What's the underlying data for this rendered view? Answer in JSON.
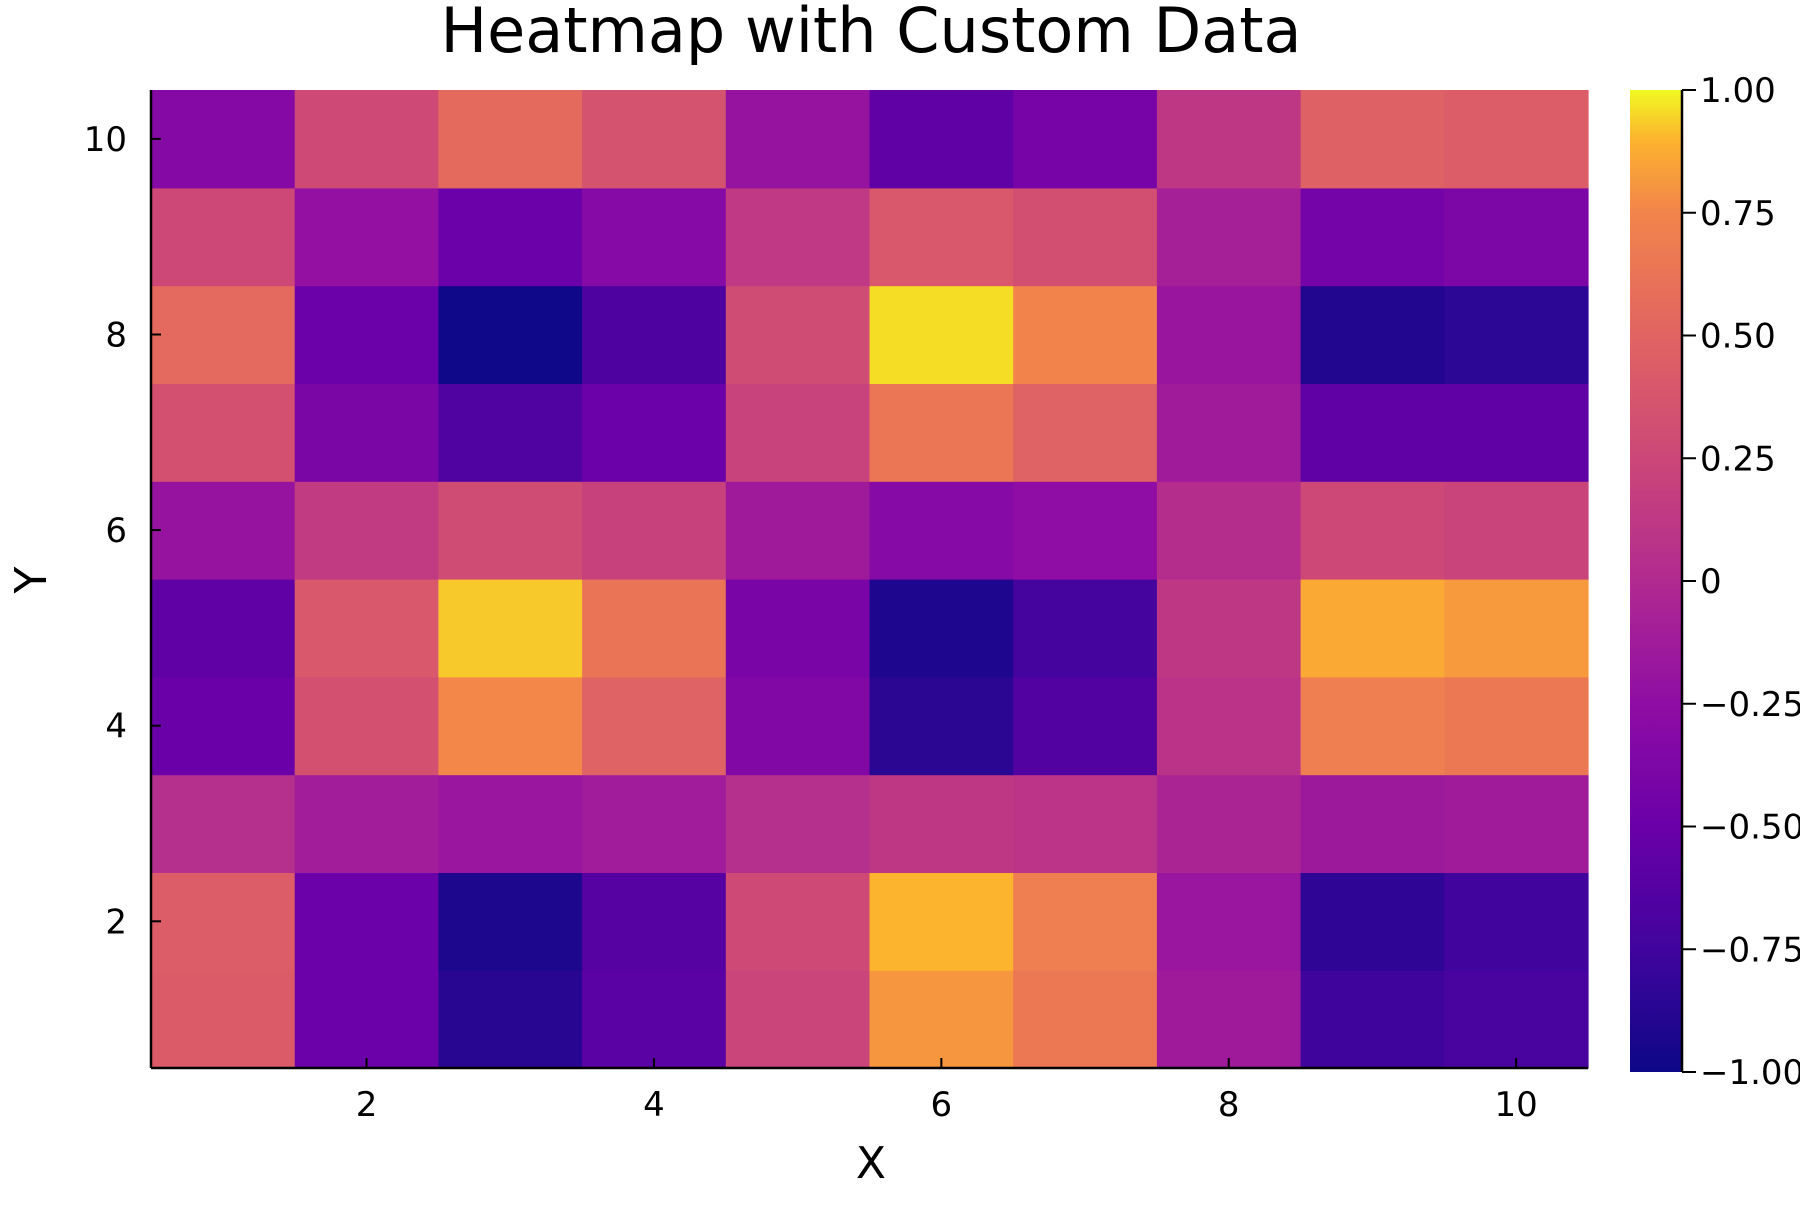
{
  "chart_data": {
    "type": "heatmap",
    "title": "Heatmap with Custom Data",
    "xlabel": "X",
    "ylabel": "Y",
    "x": [
      1,
      2,
      3,
      4,
      5,
      6,
      7,
      8,
      9,
      10
    ],
    "y": [
      1,
      2,
      3,
      4,
      5,
      6,
      7,
      8,
      9,
      10
    ],
    "xlim": [
      0.5,
      10.5
    ],
    "ylim": [
      0.5,
      10.5
    ],
    "x_ticks": [
      2,
      4,
      6,
      8,
      10
    ],
    "y_ticks": [
      2,
      4,
      6,
      8,
      10
    ],
    "x_tick_labels": [
      "2",
      "4",
      "6",
      "8",
      "10"
    ],
    "y_tick_labels": [
      "2",
      "4",
      "6",
      "8",
      "10"
    ],
    "colormap": "plasma",
    "clim": [
      -1.0,
      1.0
    ],
    "colorbar_ticks": [
      1.0,
      0.75,
      0.5,
      0.25,
      0.0,
      -0.25,
      -0.5,
      -0.75,
      -1.0
    ],
    "colorbar_tick_labels": [
      "1.00",
      "0.75",
      "0.50",
      "0.25",
      "0",
      "−0.25",
      "−0.50",
      "−0.75",
      "−1.00"
    ],
    "grid": false,
    "legend": "none",
    "z_rows_by_y": [
      [
        0.43,
        -0.49,
        -0.87,
        -0.6,
        0.23,
        0.81,
        0.66,
        -0.14,
        -0.76,
        -0.7
      ],
      [
        0.44,
        -0.49,
        -0.93,
        -0.62,
        0.27,
        0.9,
        0.7,
        -0.17,
        -0.84,
        -0.75
      ],
      [
        0.04,
        -0.11,
        -0.17,
        -0.12,
        0.04,
        0.11,
        0.09,
        -0.05,
        -0.15,
        -0.13
      ],
      [
        -0.5,
        0.33,
        0.76,
        0.48,
        -0.34,
        -0.86,
        -0.65,
        0.08,
        0.7,
        0.66
      ],
      [
        -0.57,
        0.4,
        0.93,
        0.63,
        -0.4,
        -0.92,
        -0.72,
        0.11,
        0.87,
        0.82
      ],
      [
        -0.2,
        0.15,
        0.29,
        0.2,
        -0.14,
        -0.31,
        -0.25,
        0.03,
        0.26,
        0.22
      ],
      [
        0.33,
        -0.39,
        -0.66,
        -0.49,
        0.21,
        0.64,
        0.48,
        -0.13,
        -0.57,
        -0.57
      ],
      [
        0.54,
        -0.49,
        -0.99,
        -0.67,
        0.29,
        0.96,
        0.75,
        -0.18,
        -0.9,
        -0.85
      ],
      [
        0.26,
        -0.22,
        -0.49,
        -0.31,
        0.13,
        0.4,
        0.32,
        -0.09,
        -0.43,
        -0.37
      ],
      [
        -0.32,
        0.27,
        0.55,
        0.35,
        -0.2,
        -0.57,
        -0.42,
        0.11,
        0.47,
        0.44
      ]
    ]
  }
}
